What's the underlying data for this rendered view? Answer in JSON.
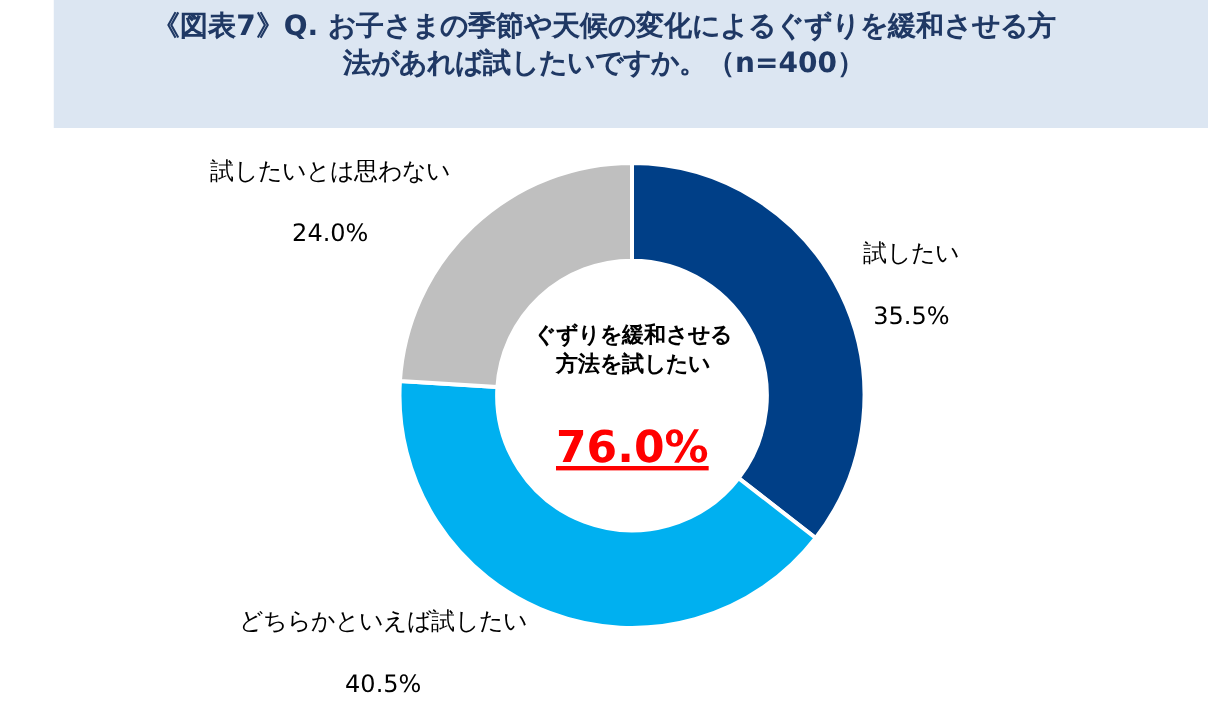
{
  "chart_data": {
    "type": "donut",
    "title": "《図表7》Q. お子さまの季節や天候の変化によるぐずりを緩和させる方法があれば試したいですか。（n=400）",
    "categories": [
      "試したい",
      "どちらかといえば試したい",
      "試したいとは思わない"
    ],
    "values": [
      35.5,
      40.5,
      24.0
    ],
    "colors": [
      "#003f87",
      "#00b0f0",
      "#bfbfbf"
    ],
    "value_labels": [
      "35.5%",
      "40.5%",
      "24.0%"
    ],
    "annotations": [
      "ぐずりを緩和させる方法を試したい",
      "76.0%"
    ],
    "legend": false
  }
}
